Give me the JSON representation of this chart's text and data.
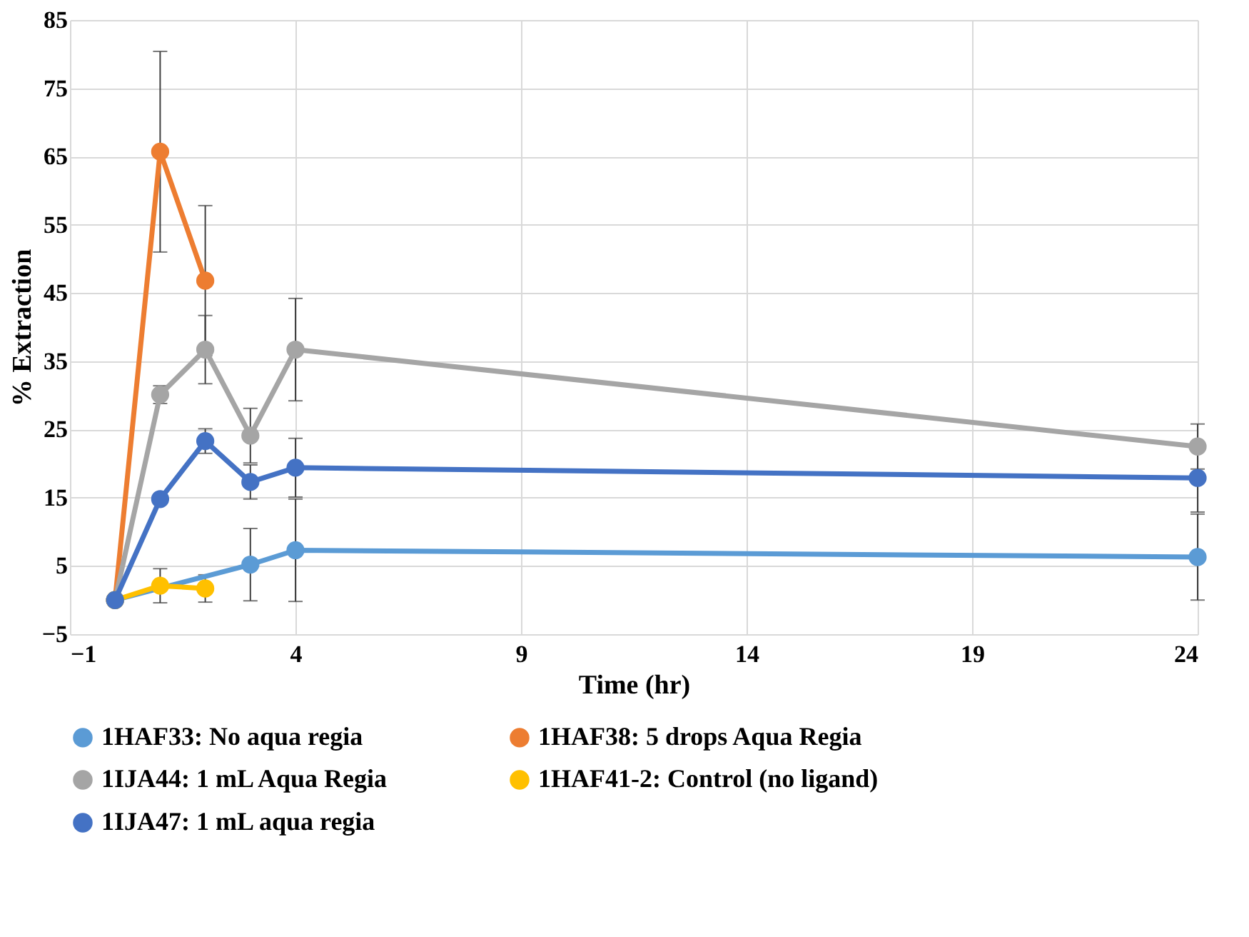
{
  "chart_data": {
    "type": "line",
    "xlabel": "Time (hr)",
    "ylabel": "% Extraction",
    "xlim": [
      -1,
      24
    ],
    "xticks": [
      -1,
      4,
      9,
      14,
      19,
      24
    ],
    "ylim": [
      -5,
      85
    ],
    "yticks": [
      -5,
      5,
      15,
      25,
      35,
      45,
      55,
      65,
      75,
      85
    ],
    "grid": true,
    "legend": "bottom",
    "marker": "circle",
    "line_style": "solid",
    "series": [
      {
        "name": "1HAF33: No aqua regia",
        "color": "#5b9bd5",
        "x": [
          0,
          1,
          2,
          3,
          4,
          24
        ],
        "values": [
          0,
          null,
          null,
          5.2,
          7.3,
          6.3
        ],
        "errors": [
          null,
          null,
          null,
          5.3,
          7.5,
          6.3
        ]
      },
      {
        "name": "1HAF38: 5 drops Aqua Regia",
        "color": "#ed7d31",
        "x": [
          0,
          1,
          2
        ],
        "values": [
          0,
          65.7,
          46.8
        ],
        "errors": [
          null,
          14.7,
          11
        ]
      },
      {
        "name": "1IJA44: 1 mL Aqua Regia",
        "color": "#a5a5a5",
        "x": [
          0,
          1,
          2,
          3,
          4,
          24
        ],
        "values": [
          0,
          30.1,
          36.7,
          24.1,
          36.7,
          22.5
        ],
        "errors": [
          null,
          1.3,
          5,
          4,
          7.5,
          3.3
        ]
      },
      {
        "name": "1HAF41-2: Control (no ligand)",
        "color": "#ffc000",
        "x": [
          0,
          1,
          2
        ],
        "values": [
          0,
          2.1,
          1.7
        ],
        "errors": [
          null,
          2.5,
          2
        ]
      },
      {
        "name": "1IJA47: 1 mL aqua regia",
        "color": "#4472c4",
        "x": [
          0,
          1,
          2,
          3,
          4,
          24
        ],
        "values": [
          0,
          14.8,
          23.3,
          17.3,
          19.4,
          17.9
        ],
        "errors": [
          null,
          null,
          1.8,
          2.5,
          4.3,
          5
        ]
      }
    ]
  }
}
